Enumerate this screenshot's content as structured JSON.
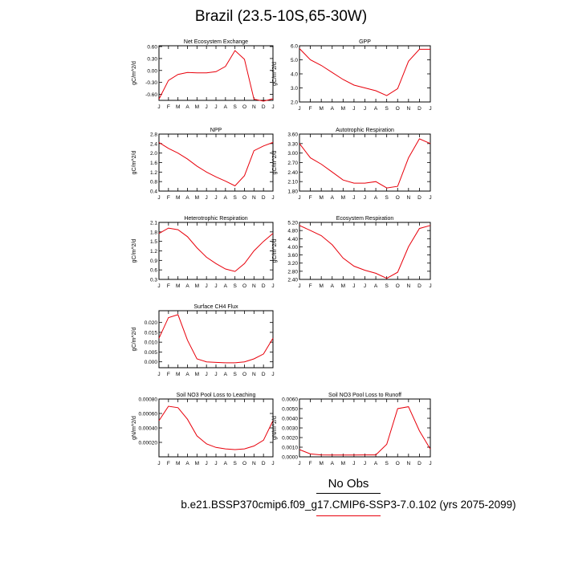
{
  "page": {
    "title": "Brazil (23.5-10S,65-30W)",
    "legend_obs": "No Obs",
    "legend_case": "b.e21.BSSP370cmip6.f09_g17.CMIP6-SSP3-7.0.102 (yrs 2075-2099)",
    "line_color": "#e8000b",
    "obs_color": "#000000"
  },
  "chart_data": [
    {
      "type": "line",
      "title": "Net Ecosystem Exchange",
      "ylabel": "gC/m^2/d",
      "categories": [
        "J",
        "F",
        "M",
        "A",
        "M",
        "J",
        "J",
        "A",
        "S",
        "O",
        "N",
        "D",
        "J"
      ],
      "ylim": [
        -0.75,
        0.62
      ],
      "yticks": [
        -0.6,
        -0.3,
        0.0,
        0.3,
        0.6
      ],
      "ytick_labels": [
        "-0.60",
        "-0.30",
        "0.00",
        "0.30",
        "0.60"
      ],
      "values": [
        -0.72,
        -0.25,
        -0.1,
        -0.05,
        -0.06,
        -0.06,
        -0.03,
        0.1,
        0.5,
        0.28,
        -0.72,
        -0.77,
        -0.71
      ]
    },
    {
      "type": "line",
      "title": "GPP",
      "ylabel": "gC/m^2/d",
      "categories": [
        "J",
        "F",
        "M",
        "A",
        "M",
        "J",
        "J",
        "A",
        "S",
        "O",
        "N",
        "D",
        "J"
      ],
      "ylim": [
        2.0,
        6.0
      ],
      "yticks": [
        2.0,
        3.0,
        4.0,
        5.0,
        6.0
      ],
      "ytick_labels": [
        "2.0",
        "3.0",
        "4.0",
        "5.0",
        "6.0"
      ],
      "values": [
        5.8,
        5.0,
        4.6,
        4.1,
        3.6,
        3.2,
        3.0,
        2.8,
        2.45,
        2.95,
        4.9,
        5.75,
        5.75
      ]
    },
    {
      "type": "line",
      "title": "NPP",
      "ylabel": "gC/m^2/d",
      "categories": [
        "J",
        "F",
        "M",
        "A",
        "M",
        "J",
        "J",
        "A",
        "S",
        "O",
        "N",
        "D",
        "J"
      ],
      "ylim": [
        0.4,
        2.8
      ],
      "yticks": [
        0.4,
        0.8,
        1.2,
        1.6,
        2.0,
        2.4,
        2.8
      ],
      "ytick_labels": [
        "0.4",
        "0.8",
        "1.2",
        "1.6",
        "2.0",
        "2.4",
        "2.8"
      ],
      "values": [
        2.45,
        2.2,
        2.0,
        1.75,
        1.45,
        1.2,
        1.0,
        0.82,
        0.62,
        1.05,
        2.1,
        2.3,
        2.45
      ]
    },
    {
      "type": "line",
      "title": "Autotrophic Respiration",
      "ylabel": "gC/m^2/d",
      "categories": [
        "J",
        "F",
        "M",
        "A",
        "M",
        "J",
        "J",
        "A",
        "S",
        "O",
        "N",
        "D",
        "J"
      ],
      "ylim": [
        1.8,
        3.6
      ],
      "yticks": [
        1.8,
        2.1,
        2.4,
        2.7,
        3.0,
        3.3,
        3.6
      ],
      "ytick_labels": [
        "1.80",
        "2.10",
        "2.40",
        "2.70",
        "3.00",
        "3.30",
        "3.60"
      ],
      "values": [
        3.3,
        2.85,
        2.65,
        2.4,
        2.15,
        2.05,
        2.05,
        2.1,
        1.9,
        1.95,
        2.85,
        3.45,
        3.3
      ]
    },
    {
      "type": "line",
      "title": "Heterotrophic Respiration",
      "ylabel": "gC/m^2/d",
      "categories": [
        "J",
        "F",
        "M",
        "A",
        "M",
        "J",
        "J",
        "A",
        "S",
        "O",
        "N",
        "D",
        "J"
      ],
      "ylim": [
        0.3,
        2.1
      ],
      "yticks": [
        0.3,
        0.6,
        0.9,
        1.2,
        1.5,
        1.8,
        2.1
      ],
      "ytick_labels": [
        "0.3",
        "0.6",
        "0.9",
        "1.2",
        "1.5",
        "1.8",
        "2.1"
      ],
      "values": [
        1.75,
        1.92,
        1.87,
        1.65,
        1.3,
        1.0,
        0.8,
        0.63,
        0.55,
        0.8,
        1.2,
        1.5,
        1.75
      ]
    },
    {
      "type": "line",
      "title": "Ecosystem Respiration",
      "ylabel": "gC/m^2/d",
      "categories": [
        "J",
        "F",
        "M",
        "A",
        "M",
        "J",
        "J",
        "A",
        "S",
        "O",
        "N",
        "D",
        "J"
      ],
      "ylim": [
        2.4,
        5.2
      ],
      "yticks": [
        2.4,
        2.8,
        3.2,
        3.6,
        4.0,
        4.4,
        4.8,
        5.2
      ],
      "ytick_labels": [
        "2.40",
        "2.80",
        "3.20",
        "3.60",
        "4.00",
        "4.40",
        "4.80",
        "5.20"
      ],
      "values": [
        5.05,
        4.8,
        4.55,
        4.1,
        3.45,
        3.05,
        2.85,
        2.7,
        2.45,
        2.75,
        4.0,
        4.9,
        5.05
      ]
    },
    {
      "type": "line",
      "title": "Surface CH4 Flux",
      "ylabel": "gC/m^2/d",
      "categories": [
        "J",
        "F",
        "M",
        "A",
        "M",
        "J",
        "J",
        "A",
        "S",
        "O",
        "N",
        "D",
        "J"
      ],
      "ylim": [
        -0.003,
        0.026
      ],
      "yticks": [
        0.0,
        0.005,
        0.01,
        0.015,
        0.02
      ],
      "ytick_labels": [
        "0.000",
        "0.005",
        "0.010",
        "0.015",
        "0.020"
      ],
      "values": [
        0.012,
        0.0225,
        0.024,
        0.011,
        0.0015,
        0.0,
        -0.0003,
        -0.0005,
        -0.0005,
        0.0,
        0.0015,
        0.004,
        0.012
      ]
    },
    {
      "type": "line",
      "title": "Soil NO3 Pool Loss to Leaching",
      "ylabel": "gN/m^2/d",
      "categories": [
        "J",
        "F",
        "M",
        "A",
        "M",
        "J",
        "J",
        "A",
        "S",
        "O",
        "N",
        "D",
        "J"
      ],
      "ylim": [
        0.0,
        0.0008
      ],
      "yticks": [
        0.0002,
        0.0004,
        0.0006,
        0.0008
      ],
      "ytick_labels": [
        "0.00020",
        "0.00040",
        "0.00060",
        "0.00080"
      ],
      "values": [
        0.0005,
        0.0007,
        0.00068,
        0.00052,
        0.00029,
        0.00018,
        0.00013,
        0.00011,
        0.0001,
        0.00011,
        0.00015,
        0.00023,
        0.0005
      ]
    },
    {
      "type": "line",
      "title": "Soil NO3 Pool Loss to Runoff",
      "ylabel": "gN/m^2/d",
      "categories": [
        "J",
        "F",
        "M",
        "A",
        "M",
        "J",
        "J",
        "A",
        "S",
        "O",
        "N",
        "D",
        "J"
      ],
      "ylim": [
        0.0,
        0.006
      ],
      "yticks": [
        0.0,
        0.001,
        0.002,
        0.003,
        0.004,
        0.005,
        0.006
      ],
      "ytick_labels": [
        "0.0000",
        "0.0010",
        "0.0020",
        "0.0030",
        "0.0040",
        "0.0050",
        "0.0060"
      ],
      "values": [
        0.00075,
        0.0003,
        0.0002,
        0.00018,
        0.00018,
        0.00018,
        0.0002,
        0.0002,
        0.0013,
        0.005,
        0.0052,
        0.0027,
        0.0008
      ]
    }
  ]
}
